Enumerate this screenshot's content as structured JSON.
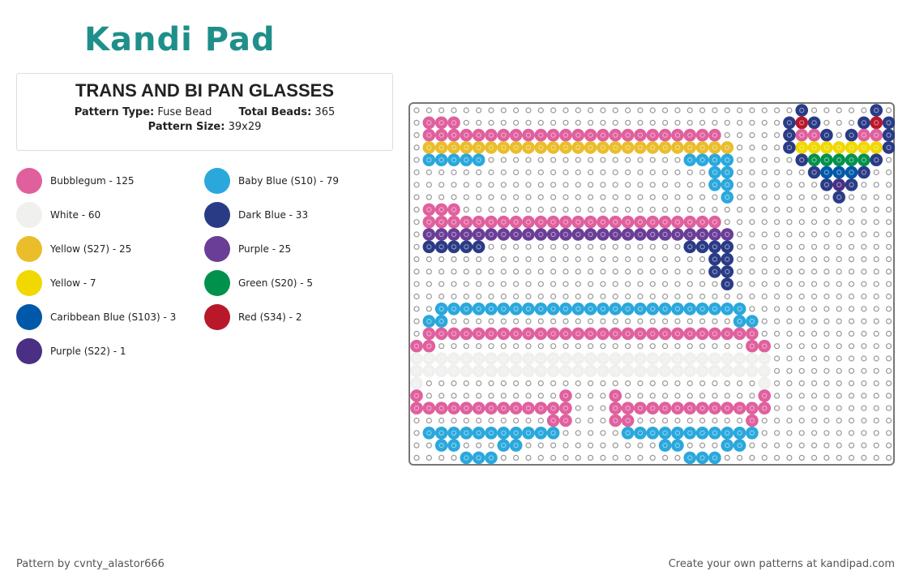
{
  "header": {
    "logo": "Kandi Pad",
    "title": "TRANS AND BI PAN GLASSES",
    "pattern_type_label": "Pattern Type:",
    "pattern_type": "Fuse Bead",
    "total_beads_label": "Total Beads:",
    "total_beads": "365",
    "pattern_size_label": "Pattern Size:",
    "pattern_size": "39x29"
  },
  "colors": [
    {
      "label": "Bubblegum - 125",
      "color": "#e0609e"
    },
    {
      "label": "Baby Blue (S10) - 79",
      "color": "#2aa8dc"
    },
    {
      "label": "White - 60",
      "color": "#f0f0ee"
    },
    {
      "label": "Dark Blue - 33",
      "color": "#2a3b86"
    },
    {
      "label": "Yellow (S27) - 25",
      "color": "#eabd2a"
    },
    {
      "label": "Purple - 25",
      "color": "#6a3d96"
    },
    {
      "label": "Yellow - 7",
      "color": "#f0d800"
    },
    {
      "label": "Green (S20) - 5",
      "color": "#00924c"
    },
    {
      "label": "Caribbean Blue (S103) - 3",
      "color": "#0058a8"
    },
    {
      "label": "Red (S34) - 2",
      "color": "#b8182a"
    },
    {
      "label": "Purple (S22) - 1",
      "color": "#4a2f85"
    }
  ],
  "footer": {
    "credit": "Pattern by cvnty_alastor666",
    "cta": "Create your own patterns at kandipad.com"
  }
}
